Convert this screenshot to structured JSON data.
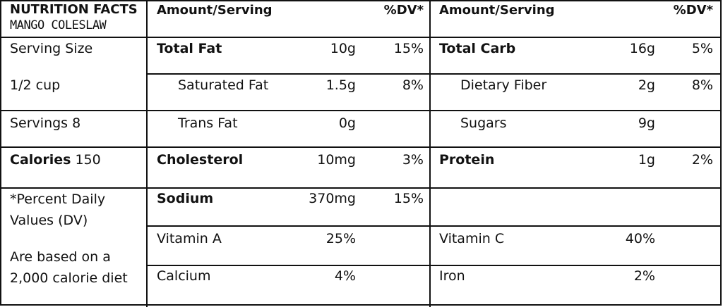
{
  "header": {
    "title": "NUTRITION FACTS",
    "subtitle": "MANGO COLESLAW",
    "col1_amount": "Amount/Serving",
    "col1_dv": "%DV*",
    "col2_amount": "Amount/Serving",
    "col2_dv": "%DV*"
  },
  "left": {
    "serving_size_label": "Serving Size",
    "serving_size_value": "1/2 cup",
    "servings": "Servings 8",
    "calories_label": "Calories",
    "calories_value": "150",
    "note_line1": "*Percent Daily",
    "note_line2": "Values (DV)",
    "note_line3": "Are based on a",
    "note_line4": "2,000 calorie diet"
  },
  "col1": {
    "total_fat": {
      "label": "Total Fat",
      "amount": "10g",
      "dv": "15%"
    },
    "saturated_fat": {
      "label": "Saturated Fat",
      "amount": "1.5g",
      "dv": "8%"
    },
    "trans_fat": {
      "label": "Trans Fat",
      "amount": "0g",
      "dv": ""
    },
    "cholesterol": {
      "label": "Cholesterol",
      "amount": "10mg",
      "dv": "3%"
    },
    "sodium": {
      "label": "Sodium",
      "amount": "370mg",
      "dv": "15%"
    },
    "vitamin_a": {
      "label": "Vitamin A",
      "value": "25%"
    },
    "calcium": {
      "label": "Calcium",
      "value": "4%"
    }
  },
  "col2": {
    "total_carb": {
      "label": "Total Carb",
      "amount": "16g",
      "dv": "5%"
    },
    "dietary_fiber": {
      "label": "Dietary Fiber",
      "amount": "2g",
      "dv": "8%"
    },
    "sugars": {
      "label": "Sugars",
      "amount": "9g",
      "dv": ""
    },
    "protein": {
      "label": "Protein",
      "amount": "1g",
      "dv": "2%"
    },
    "vitamin_c": {
      "label": "Vitamin C",
      "value": "40%"
    },
    "iron": {
      "label": "Iron",
      "value": "2%"
    }
  }
}
